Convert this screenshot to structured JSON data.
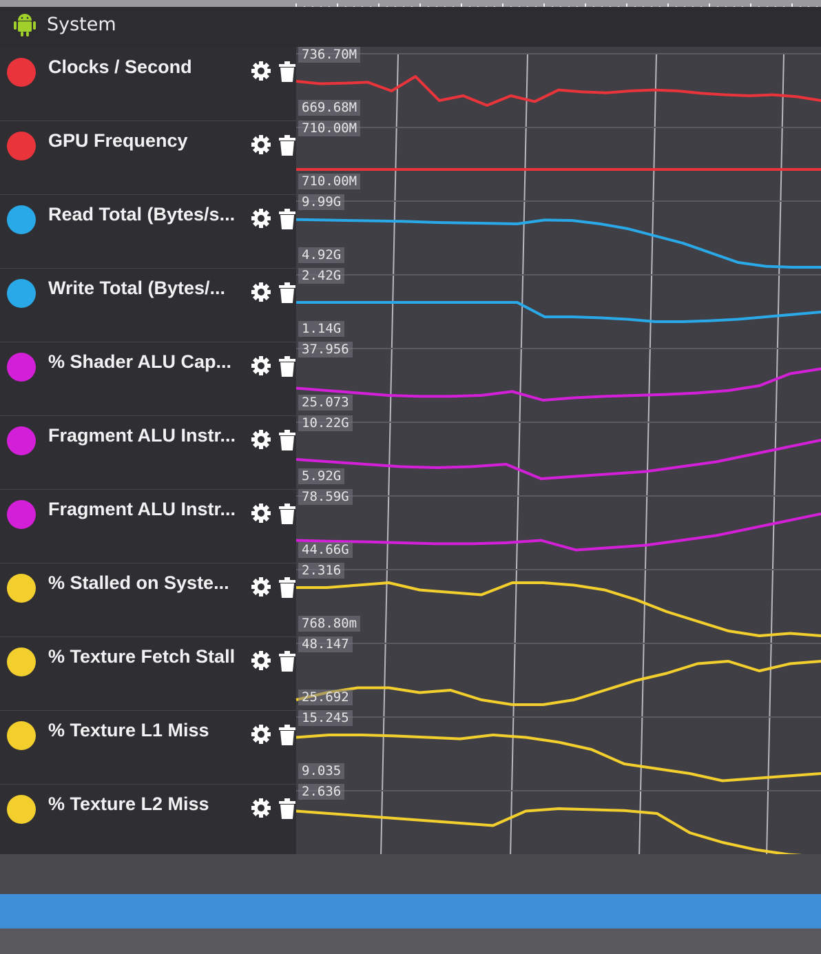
{
  "header": {
    "title": "System",
    "icon": "android-icon"
  },
  "colors": {
    "red": "#e8343a",
    "blue": "#2aa9e8",
    "magenta": "#d41fd8",
    "yellow": "#f3cf2e",
    "scrollbar": "#3f8fd8"
  },
  "counters": [
    {
      "label": "Clocks / Second",
      "color": "red",
      "max": "736.70M",
      "min": "669.68M"
    },
    {
      "label": "GPU Frequency",
      "color": "red",
      "max": "710.00M",
      "min": "710.00M"
    },
    {
      "label": "Read Total (Bytes/s...",
      "color": "blue",
      "max": "9.99G",
      "min": "4.92G"
    },
    {
      "label": "Write Total (Bytes/...",
      "color": "blue",
      "max": "2.42G",
      "min": "1.14G"
    },
    {
      "label": "% Shader ALU Cap...",
      "color": "magenta",
      "max": "37.956",
      "min": "25.073"
    },
    {
      "label": "Fragment ALU Instr...",
      "color": "magenta",
      "max": "10.22G",
      "min": "5.92G"
    },
    {
      "label": "Fragment ALU Instr...",
      "color": "magenta",
      "max": "78.59G",
      "min": "44.66G"
    },
    {
      "label": "% Stalled on Syste...",
      "color": "yellow",
      "max": "2.316",
      "min": "768.80m"
    },
    {
      "label": "% Texture Fetch Stall",
      "color": "yellow",
      "max": "48.147",
      "min": "25.692"
    },
    {
      "label": "% Texture L1 Miss",
      "color": "yellow",
      "max": "15.245",
      "min": "9.035"
    },
    {
      "label": "% Texture L2 Miss",
      "color": "yellow",
      "max": "2.636",
      "min": ""
    }
  ],
  "row_icons": {
    "settings": "gear-icon",
    "delete": "trash-icon"
  },
  "series_samples": {
    "clocks_per_second": [
      0.8,
      0.75,
      0.76,
      0.78,
      0.6,
      0.9,
      0.4,
      0.5,
      0.3,
      0.5,
      0.38,
      0.62,
      0.58,
      0.56,
      0.6,
      0.62,
      0.6,
      0.55,
      0.52,
      0.5,
      0.52,
      0.48,
      0.4
    ],
    "gpu_frequency": [
      0.5,
      0.5,
      0.5,
      0.5,
      0.5,
      0.5,
      0.5,
      0.5,
      0.5,
      0.5,
      0.5,
      0.5,
      0.5,
      0.5,
      0.5,
      0.5,
      0.5,
      0.5,
      0.5,
      0.5,
      0.5,
      0.5,
      0.5
    ],
    "read_total": [
      0.99,
      0.98,
      0.97,
      0.96,
      0.95,
      0.93,
      0.92,
      0.91,
      0.9,
      0.98,
      0.97,
      0.9,
      0.8,
      0.65,
      0.5,
      0.3,
      0.1,
      0.02,
      0.0,
      0.0
    ],
    "write_total": [
      0.8,
      0.8,
      0.8,
      0.8,
      0.8,
      0.8,
      0.8,
      0.8,
      0.8,
      0.5,
      0.5,
      0.48,
      0.45,
      0.4,
      0.4,
      0.42,
      0.45,
      0.5,
      0.55,
      0.6
    ],
    "shader_alu_capacity": [
      0.55,
      0.5,
      0.45,
      0.4,
      0.38,
      0.38,
      0.4,
      0.48,
      0.3,
      0.35,
      0.38,
      0.4,
      0.42,
      0.45,
      0.5,
      0.6,
      0.85,
      0.95
    ],
    "fragment_alu_instr_1": [
      0.6,
      0.55,
      0.5,
      0.45,
      0.43,
      0.45,
      0.5,
      0.2,
      0.25,
      0.3,
      0.35,
      0.45,
      0.55,
      0.7,
      0.85,
      1.0
    ],
    "fragment_alu_instr_2": [
      0.45,
      0.43,
      0.42,
      0.4,
      0.38,
      0.38,
      0.4,
      0.45,
      0.25,
      0.3,
      0.35,
      0.45,
      0.55,
      0.7,
      0.85,
      1.0
    ],
    "stalled_on_system": [
      1.0,
      1.0,
      1.05,
      1.1,
      0.95,
      0.9,
      0.85,
      1.1,
      1.1,
      1.05,
      0.95,
      0.75,
      0.5,
      0.3,
      0.1,
      0.0,
      0.05,
      0.0
    ],
    "texture_fetch_stall": [
      0.2,
      0.35,
      0.45,
      0.45,
      0.35,
      0.4,
      0.2,
      0.1,
      0.1,
      0.2,
      0.4,
      0.6,
      0.75,
      0.95,
      1.0,
      0.8,
      0.95,
      1.0
    ],
    "texture_l1_miss": [
      0.95,
      1.0,
      1.0,
      0.98,
      0.95,
      0.92,
      1.0,
      0.95,
      0.85,
      0.7,
      0.4,
      0.3,
      0.2,
      0.05,
      0.1,
      0.15,
      0.2
    ],
    "texture_l2_miss": [
      0.95,
      0.9,
      0.85,
      0.8,
      0.75,
      0.7,
      0.65,
      0.95,
      1.0,
      0.98,
      0.96,
      0.9,
      0.5,
      0.3,
      0.15,
      0.05,
      0.0
    ]
  }
}
